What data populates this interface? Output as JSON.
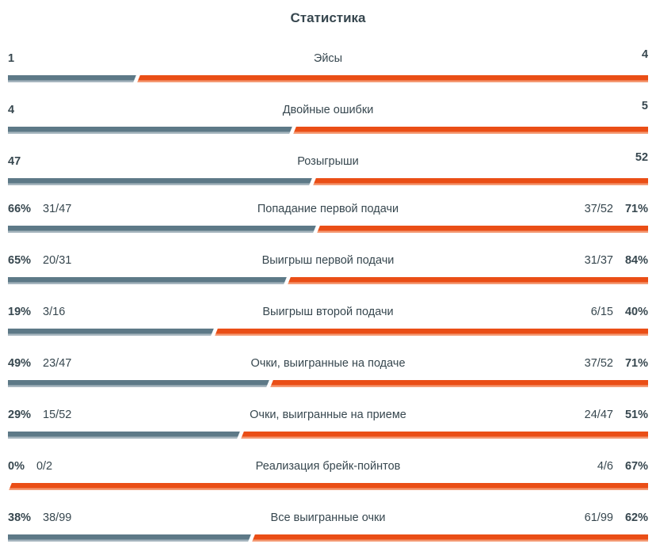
{
  "title": "Статистика",
  "colors": {
    "home": "#5d7987",
    "home_light": "#a7b6bf",
    "away": "#ea4e16",
    "away_light": "#f49a74",
    "text": "#37474f",
    "background": "#ffffff",
    "divider": "#ffffff"
  },
  "rows": [
    {
      "label": "Эйсы",
      "left_display": "1",
      "left_fraction": "",
      "right_fraction": "",
      "right_display": "4",
      "left_num": 1,
      "right_num": 4
    },
    {
      "label": "Двойные ошибки",
      "left_display": "4",
      "left_fraction": "",
      "right_fraction": "",
      "right_display": "5",
      "left_num": 4,
      "right_num": 5
    },
    {
      "label": "Розыгрыши",
      "left_display": "47",
      "left_fraction": "",
      "right_fraction": "",
      "right_display": "52",
      "left_num": 47,
      "right_num": 52
    },
    {
      "label": "Попадание первой подачи",
      "left_display": "66%",
      "left_fraction": "31/47",
      "right_fraction": "37/52",
      "right_display": "71%",
      "left_num": 66,
      "right_num": 71
    },
    {
      "label": "Выигрыш первой подачи",
      "left_display": "65%",
      "left_fraction": "20/31",
      "right_fraction": "31/37",
      "right_display": "84%",
      "left_num": 65,
      "right_num": 84
    },
    {
      "label": "Выигрыш второй подачи",
      "left_display": "19%",
      "left_fraction": "3/16",
      "right_fraction": "6/15",
      "right_display": "40%",
      "left_num": 19,
      "right_num": 40
    },
    {
      "label": "Очки, выигранные на подаче",
      "left_display": "49%",
      "left_fraction": "23/47",
      "right_fraction": "37/52",
      "right_display": "71%",
      "left_num": 49,
      "right_num": 71
    },
    {
      "label": "Очки, выигранные на приеме",
      "left_display": "29%",
      "left_fraction": "15/52",
      "right_fraction": "24/47",
      "right_display": "51%",
      "left_num": 29,
      "right_num": 51
    },
    {
      "label": "Реализация брейк-пойнтов",
      "left_display": "0%",
      "left_fraction": "0/2",
      "right_fraction": "4/6",
      "right_display": "67%",
      "left_num": 0,
      "right_num": 67
    },
    {
      "label": "Все выигранные очки",
      "left_display": "38%",
      "left_fraction": "38/99",
      "right_fraction": "61/99",
      "right_display": "62%",
      "left_num": 38,
      "right_num": 62
    }
  ],
  "chart_data": {
    "type": "bar",
    "orientation": "horizontal-paired",
    "title": "Статистика",
    "categories": [
      "Эйсы",
      "Двойные ошибки",
      "Розыгрыши",
      "Попадание первой подачи",
      "Выигрыш первой подачи",
      "Выигрыш второй подачи",
      "Очки, выигранные на подаче",
      "Очки, выигранные на приеме",
      "Реализация брейк-пойнтов",
      "Все выигранные очки"
    ],
    "series": [
      {
        "name": "player-left",
        "color": "#5d7987",
        "values": [
          1,
          4,
          47,
          66,
          65,
          19,
          49,
          29,
          0,
          38
        ],
        "labels": [
          "1",
          "4",
          "47",
          "66% (31/47)",
          "65% (20/31)",
          "19% (3/16)",
          "49% (23/47)",
          "29% (15/52)",
          "0% (0/2)",
          "38% (38/99)"
        ]
      },
      {
        "name": "player-right",
        "color": "#ea4e16",
        "values": [
          4,
          5,
          52,
          71,
          84,
          40,
          71,
          51,
          67,
          62
        ],
        "labels": [
          "4",
          "5",
          "52",
          "71% (37/52)",
          "84% (31/37)",
          "40% (6/15)",
          "71% (37/52)",
          "51% (24/47)",
          "67% (4/6)",
          "62% (61/99)"
        ]
      }
    ],
    "bar_share_rule": "left_num / (left_num + right_num)",
    "legend": false,
    "grid": false
  }
}
